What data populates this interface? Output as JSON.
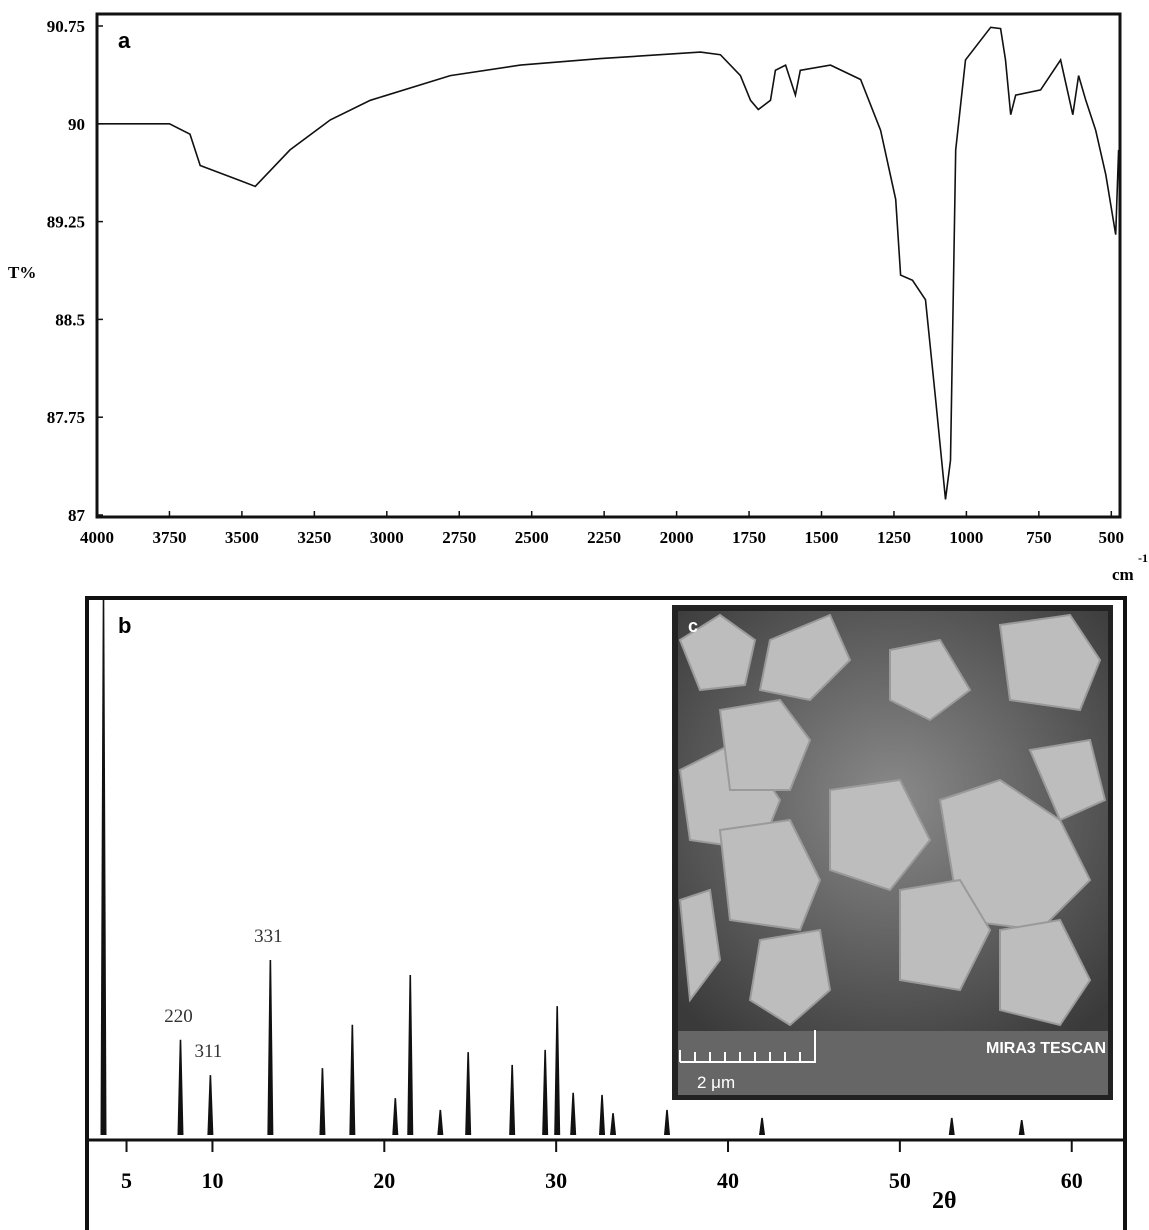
{
  "chart_data": [
    {
      "type": "line",
      "panel": "a",
      "y_label": "T%",
      "x_label": "cm",
      "x_label_exponent": "-1",
      "color": "#111111",
      "x": [
        4000,
        3750,
        3679,
        3644,
        3500,
        3454,
        3334,
        3195,
        3057,
        2781,
        2539,
        2263,
        1918,
        1849,
        1780,
        1745,
        1718,
        1676,
        1659,
        1624,
        1590,
        1573,
        1469,
        1365,
        1296,
        1244,
        1227,
        1186,
        1141,
        1106,
        1072,
        1055,
        1037,
        1003,
        916,
        882,
        865,
        847,
        830,
        744,
        675,
        633,
        613,
        588,
        554,
        519,
        485,
        475
      ],
      "values": [
        90.0,
        90.0,
        89.92,
        89.68,
        89.56,
        89.52,
        89.8,
        90.03,
        90.18,
        90.37,
        90.45,
        90.5,
        90.55,
        90.53,
        90.37,
        90.18,
        90.11,
        90.18,
        90.41,
        90.45,
        90.22,
        90.41,
        90.45,
        90.34,
        89.95,
        89.42,
        88.84,
        88.8,
        88.65,
        87.88,
        87.12,
        87.42,
        89.8,
        90.49,
        90.74,
        90.73,
        90.49,
        90.07,
        90.22,
        90.26,
        90.49,
        90.07,
        90.37,
        90.18,
        89.95,
        89.61,
        89.15,
        89.8
      ],
      "xlim": [
        4000,
        470
      ],
      "xticks": [
        4000,
        3750,
        3500,
        3250,
        3000,
        2750,
        2500,
        2250,
        2000,
        1750,
        1500,
        1250,
        1000,
        750,
        500
      ],
      "ylim": [
        87,
        90.75
      ],
      "yticks": [
        87,
        87.75,
        88.5,
        89.25,
        90,
        90.75
      ]
    },
    {
      "type": "stick",
      "panel": "b",
      "x_label": "2θ",
      "color": "#111111",
      "x": [
        3.66,
        8.14,
        9.88,
        13.37,
        16.4,
        18.14,
        20.64,
        21.51,
        23.26,
        24.88,
        27.44,
        29.36,
        30.06,
        30.99,
        32.67,
        33.31,
        36.45,
        41.98,
        53.02,
        57.09
      ],
      "values": [
        100,
        17.8,
        11.2,
        32.7,
        12.5,
        20.6,
        6.9,
        29.9,
        4.7,
        15.5,
        13.1,
        15.9,
        24.1,
        7.9,
        7.5,
        4.1,
        4.7,
        3.2,
        3.2,
        2.8
      ],
      "peak_labels": [
        null,
        "220",
        "311",
        "331",
        null,
        null,
        null,
        null,
        null,
        null,
        null,
        null,
        null,
        null,
        null,
        null,
        null,
        null,
        null,
        null
      ],
      "xlim": [
        2.7,
        63.1
      ],
      "xticks": [
        5,
        10,
        20,
        30,
        40,
        50,
        60
      ],
      "ylim": [
        0,
        100
      ]
    }
  ],
  "inset": {
    "label": "c",
    "scale_bar": "2 μm",
    "instrument": "MIRA3 TESCAN"
  }
}
